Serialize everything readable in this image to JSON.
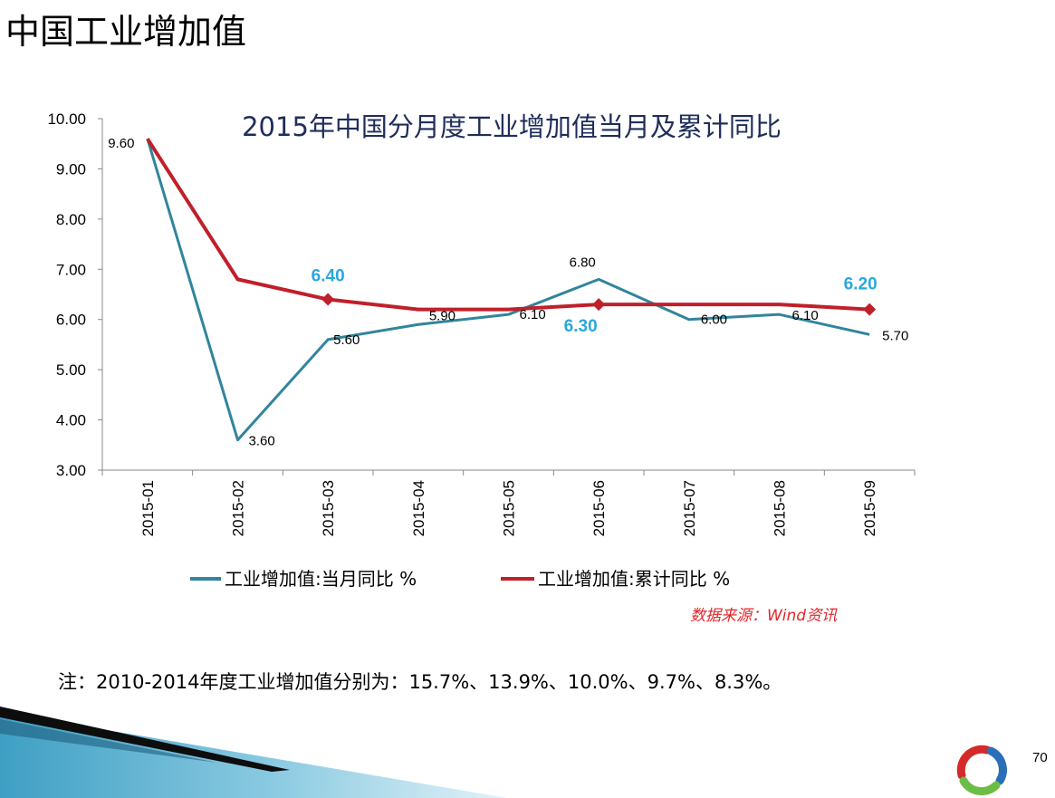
{
  "slide": {
    "title": "中国工业增加值",
    "source_note": "数据来源：Wind资讯",
    "footnote": "注：2010-2014年度工业增加值分别为：15.7%、13.9%、10.0%、9.7%、8.3%。",
    "page_number": "70"
  },
  "chart_data": {
    "type": "line",
    "title": "2015年中国分月度工业增加值当月及累计同比",
    "xlabel": "",
    "ylabel": "",
    "categories": [
      "2015-01",
      "2015-02",
      "2015-03",
      "2015-04",
      "2015-05",
      "2015-06",
      "2015-07",
      "2015-08",
      "2015-09"
    ],
    "ylim": [
      3.0,
      10.0
    ],
    "yticks": [
      3.0,
      4.0,
      5.0,
      6.0,
      7.0,
      8.0,
      9.0,
      10.0
    ],
    "ytick_labels": [
      "3.00",
      "4.00",
      "5.00",
      "6.00",
      "7.00",
      "8.00",
      "9.00",
      "10.00"
    ],
    "grid": false,
    "legend_position": "bottom",
    "series": [
      {
        "name": "工业增加值:当月同比 %",
        "color": "#31859c",
        "values": [
          9.6,
          3.6,
          5.6,
          5.9,
          6.1,
          6.8,
          6.0,
          6.1,
          5.7
        ],
        "labels": [
          "9.60",
          "3.60",
          "5.60",
          "5.90",
          "6.10",
          "6.80",
          "6.00",
          "6.10",
          "5.70"
        ]
      },
      {
        "name": "工业增加值:累计同比 %",
        "color": "#c0202a",
        "values": [
          9.6,
          6.8,
          6.4,
          6.2,
          6.2,
          6.3,
          6.3,
          6.3,
          6.2
        ],
        "highlights": [
          {
            "index": 2,
            "label": "6.40"
          },
          {
            "index": 5,
            "label": "6.30"
          },
          {
            "index": 8,
            "label": "6.20"
          }
        ]
      }
    ],
    "highlight_color": "#2aa7dc",
    "source_color": "#e3262a"
  }
}
